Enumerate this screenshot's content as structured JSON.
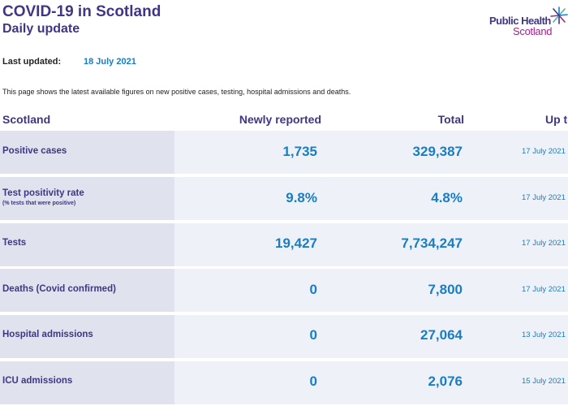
{
  "header": {
    "title": "COVID-19 in Scotland",
    "subtitle": "Daily update",
    "logo_line1": "Public Health",
    "logo_line2": "Scotland"
  },
  "last_updated": {
    "label": "Last updated:",
    "value": "18 July 2021"
  },
  "intro_text": "This page shows the latest available figures on new positive cases, testing, hospital admissions and deaths.",
  "table": {
    "columns": {
      "region": "Scotland",
      "newly_reported": "Newly reported",
      "total": "Total",
      "up_to": "Up to"
    },
    "rows": [
      {
        "label": "Positive cases",
        "sublabel": "",
        "new": "1,735",
        "total": "329,387",
        "date": "17 July 2021"
      },
      {
        "label": "Test positivity rate",
        "sublabel": "(% tests that were positive)",
        "new": "9.8%",
        "total": "4.8%",
        "date": "17 July 2021"
      },
      {
        "label": "Tests",
        "sublabel": "",
        "new": "19,427",
        "total": "7,734,247",
        "date": "17 July 2021"
      },
      {
        "label": "Deaths (Covid confirmed)",
        "sublabel": "",
        "new": "0",
        "total": "7,800",
        "date": "17 July 2021"
      },
      {
        "label": "Hospital admissions",
        "sublabel": "",
        "new": "0",
        "total": "27,064",
        "date": "13 July 2021"
      },
      {
        "label": "ICU admissions",
        "sublabel": "",
        "new": "0",
        "total": "2,076",
        "date": "15 July 2021"
      }
    ]
  },
  "colors": {
    "brand_purple": "#3f3685",
    "accent_blue": "#1a7dc1",
    "logo_magenta": "#a4228f",
    "row_bg": "#eef1f8",
    "label_cell_bg": "#e0e3ee"
  }
}
